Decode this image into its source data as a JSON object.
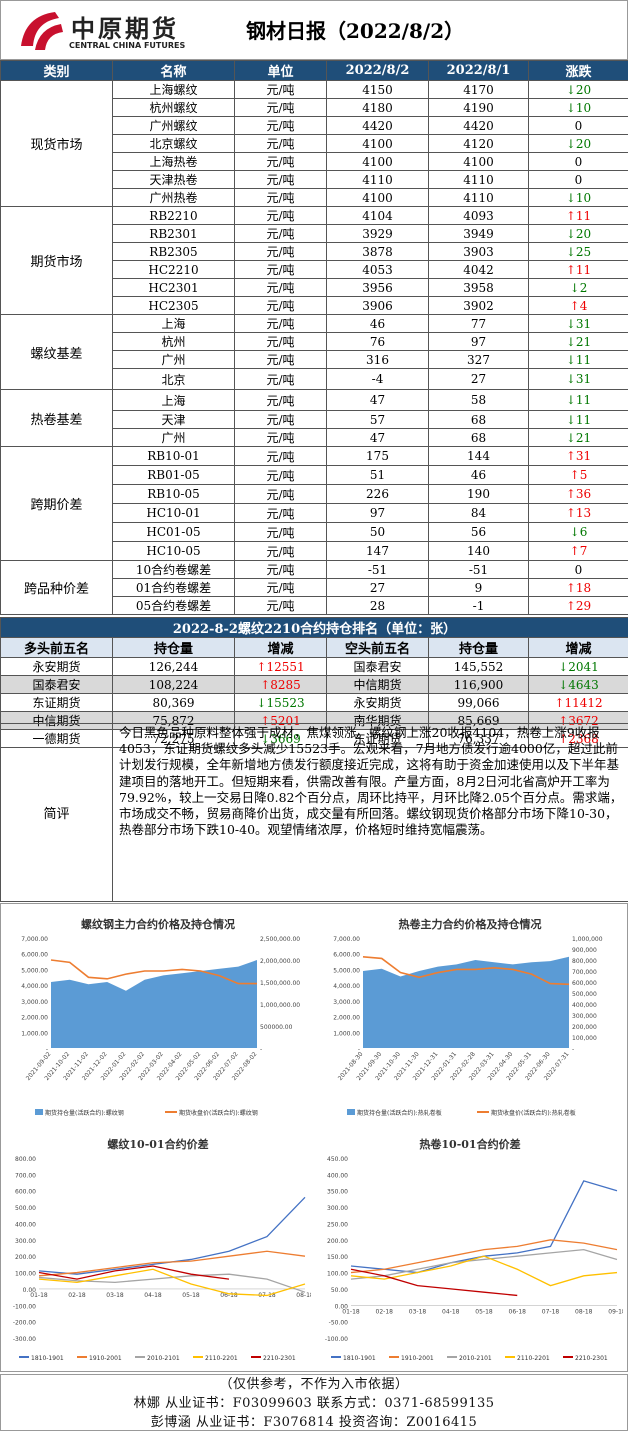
{
  "header": {
    "brand_cn": "中原期货",
    "brand_en": "CENTRAL CHINA FUTURES",
    "title": "钢材日报（2022/8/2）"
  },
  "table_headers": [
    "类别",
    "名称",
    "单位",
    "2022/8/2",
    "2022/8/1",
    "涨跌"
  ],
  "groups": [
    {
      "category": "现货市场",
      "rows": [
        {
          "name": "上海螺纹",
          "unit": "元/吨",
          "v1": "4150",
          "v2": "4170",
          "arrow": "↓",
          "chg": "20",
          "dir": "down"
        },
        {
          "name": "杭州螺纹",
          "unit": "元/吨",
          "v1": "4180",
          "v2": "4190",
          "arrow": "↓",
          "chg": "10",
          "dir": "down"
        },
        {
          "name": "广州螺纹",
          "unit": "元/吨",
          "v1": "4420",
          "v2": "4420",
          "arrow": "",
          "chg": "0",
          "dir": "flat"
        },
        {
          "name": "北京螺纹",
          "unit": "元/吨",
          "v1": "4100",
          "v2": "4120",
          "arrow": "↓",
          "chg": "20",
          "dir": "down"
        },
        {
          "name": "上海热卷",
          "unit": "元/吨",
          "v1": "4100",
          "v2": "4100",
          "arrow": "",
          "chg": "0",
          "dir": "flat"
        },
        {
          "name": "天津热卷",
          "unit": "元/吨",
          "v1": "4110",
          "v2": "4110",
          "arrow": "",
          "chg": "0",
          "dir": "flat"
        },
        {
          "name": "广州热卷",
          "unit": "元/吨",
          "v1": "4100",
          "v2": "4110",
          "arrow": "↓",
          "chg": "10",
          "dir": "down"
        }
      ]
    },
    {
      "category": "期货市场",
      "rows": [
        {
          "name": "RB2210",
          "unit": "元/吨",
          "v1": "4104",
          "v2": "4093",
          "arrow": "↑",
          "chg": "11",
          "dir": "up"
        },
        {
          "name": "RB2301",
          "unit": "元/吨",
          "v1": "3929",
          "v2": "3949",
          "arrow": "↓",
          "chg": "20",
          "dir": "down"
        },
        {
          "name": "RB2305",
          "unit": "元/吨",
          "v1": "3878",
          "v2": "3903",
          "arrow": "↓",
          "chg": "25",
          "dir": "down"
        },
        {
          "name": "HC2210",
          "unit": "元/吨",
          "v1": "4053",
          "v2": "4042",
          "arrow": "↑",
          "chg": "11",
          "dir": "up"
        },
        {
          "name": "HC2301",
          "unit": "元/吨",
          "v1": "3956",
          "v2": "3958",
          "arrow": "↓",
          "chg": "2",
          "dir": "down"
        },
        {
          "name": "HC2305",
          "unit": "元/吨",
          "v1": "3906",
          "v2": "3902",
          "arrow": "↑",
          "chg": "4",
          "dir": "up"
        }
      ]
    },
    {
      "category": "螺纹基差",
      "rows": [
        {
          "name": "上海",
          "unit": "元/吨",
          "v1": "46",
          "v2": "77",
          "arrow": "↓",
          "chg": "31",
          "dir": "down"
        },
        {
          "name": "杭州",
          "unit": "元/吨",
          "v1": "76",
          "v2": "97",
          "arrow": "↓",
          "chg": "21",
          "dir": "down"
        },
        {
          "name": "广州",
          "unit": "元/吨",
          "v1": "316",
          "v2": "327",
          "arrow": "↓",
          "chg": "11",
          "dir": "down"
        },
        {
          "name": "北京",
          "unit": "元/吨",
          "v1": "-4",
          "v2": "27",
          "arrow": "↓",
          "chg": "31",
          "dir": "down"
        }
      ]
    },
    {
      "category": "热卷基差",
      "rows": [
        {
          "name": "上海",
          "unit": "元/吨",
          "v1": "47",
          "v2": "58",
          "arrow": "↓",
          "chg": "11",
          "dir": "down"
        },
        {
          "name": "天津",
          "unit": "元/吨",
          "v1": "57",
          "v2": "68",
          "arrow": "↓",
          "chg": "11",
          "dir": "down"
        },
        {
          "name": "广州",
          "unit": "元/吨",
          "v1": "47",
          "v2": "68",
          "arrow": "↓",
          "chg": "21",
          "dir": "down"
        }
      ]
    },
    {
      "category": "跨期价差",
      "rows": [
        {
          "name": "RB10-01",
          "unit": "元/吨",
          "v1": "175",
          "v2": "144",
          "arrow": "↑",
          "chg": "31",
          "dir": "up"
        },
        {
          "name": "RB01-05",
          "unit": "元/吨",
          "v1": "51",
          "v2": "46",
          "arrow": "↑",
          "chg": "5",
          "dir": "up"
        },
        {
          "name": "RB10-05",
          "unit": "元/吨",
          "v1": "226",
          "v2": "190",
          "arrow": "↑",
          "chg": "36",
          "dir": "up"
        },
        {
          "name": "HC10-01",
          "unit": "元/吨",
          "v1": "97",
          "v2": "84",
          "arrow": "↑",
          "chg": "13",
          "dir": "up"
        },
        {
          "name": "HC01-05",
          "unit": "元/吨",
          "v1": "50",
          "v2": "56",
          "arrow": "↓",
          "chg": "6",
          "dir": "down"
        },
        {
          "name": "HC10-05",
          "unit": "元/吨",
          "v1": "147",
          "v2": "140",
          "arrow": "↑",
          "chg": "7",
          "dir": "up"
        }
      ]
    },
    {
      "category": "跨品种价差",
      "rows": [
        {
          "name": "10合约卷螺差",
          "unit": "元/吨",
          "v1": "-51",
          "v2": "-51",
          "arrow": "",
          "chg": "0",
          "dir": "flat"
        },
        {
          "name": "01合约卷螺差",
          "unit": "元/吨",
          "v1": "27",
          "v2": "9",
          "arrow": "↑",
          "chg": "18",
          "dir": "up"
        },
        {
          "name": "05合约卷螺差",
          "unit": "元/吨",
          "v1": "28",
          "v2": "-1",
          "arrow": "↑",
          "chg": "29",
          "dir": "up"
        }
      ]
    }
  ],
  "ranking": {
    "title": "2022-8-2螺纹2210合约持仓排名（单位：张）",
    "headers": [
      "多头前五名",
      "持仓量",
      "增减",
      "空头前五名",
      "持仓量",
      "增减"
    ],
    "rows": [
      {
        "long_name": "永安期货",
        "long_qty": "126,244",
        "long_arrow": "↑",
        "long_chg": "12551",
        "long_dir": "up",
        "short_name": "国泰君安",
        "short_qty": "145,552",
        "short_arrow": "↓",
        "short_chg": "2041",
        "short_dir": "down"
      },
      {
        "long_name": "国泰君安",
        "long_qty": "108,224",
        "long_arrow": "↑",
        "long_chg": "8285",
        "long_dir": "up",
        "short_name": "中信期货",
        "short_qty": "116,900",
        "short_arrow": "↓",
        "short_chg": "4643",
        "short_dir": "down"
      },
      {
        "long_name": "东证期货",
        "long_qty": "80,369",
        "long_arrow": "↓",
        "long_chg": "15523",
        "long_dir": "down",
        "short_name": "永安期货",
        "short_qty": "99,066",
        "short_arrow": "↑",
        "short_chg": "11412",
        "short_dir": "up"
      },
      {
        "long_name": "中信期货",
        "long_qty": "75,872",
        "long_arrow": "↑",
        "long_chg": "5201",
        "long_dir": "up",
        "short_name": "南华期货",
        "short_qty": "85,669",
        "short_arrow": "↑",
        "short_chg": "3672",
        "short_dir": "up"
      },
      {
        "long_name": "一德期货",
        "long_qty": "72,275",
        "long_arrow": "↓",
        "long_chg": "3669",
        "long_dir": "down",
        "short_name": "东证期货",
        "short_qty": "76,337",
        "short_arrow": "↑",
        "short_chg": "2368",
        "short_dir": "up"
      }
    ]
  },
  "comment": {
    "label": "简评",
    "text": "今日黑色品种原料整体强于成材，焦煤领涨。螺纹钢上涨20收报4104，热卷上涨9收报4053，东证期货螺纹多头减少15523手。宏观来看，7月地方债发行逾4000亿，超过此前计划发行规模，全年新增地方债发行额度接近完成，这将有助于资金加速使用以及下半年基建项目的落地开工。但短期来看，供需改善有限。产量方面，8月2日河北省高炉开工率为79.92%，较上一交易日降0.82个百分点，周环比持平，月环比降2.05个百分点。需求端，市场成交不畅，贸易商降价出货，成交量有所回落。螺纹钢现货价格部分市场下降10-30，热卷部分市场下跌10-40。观望情绪浓厚，价格短时维持宽幅震荡。"
  },
  "chart_data": [
    {
      "type": "area",
      "title": "螺纹钢主力合约价格及持仓情况",
      "x": [
        "2021-09-02",
        "2021-10-02",
        "2021-11-02",
        "2021-12-02",
        "2022-01-02",
        "2022-02-02",
        "2022-03-02",
        "2022-04-02",
        "2022-05-02",
        "2022-06-02",
        "2022-07-02",
        "2022-08-02"
      ],
      "y_left_ticks": [
        "-",
        "1,000.00",
        "2,000.00",
        "3,000.00",
        "4,000.00",
        "5,000.00",
        "6,000.00",
        "7,000.00"
      ],
      "y_right_ticks": [
        "-",
        "500000.00",
        "1,000,000.00",
        "1,500,000.00",
        "2,000,000.00",
        "2,500,000.00"
      ],
      "ylim_left": [
        0,
        7000
      ],
      "ylim_right": [
        0,
        2500000
      ],
      "series": [
        {
          "name": "期货持仓量(活跃合约):螺纹钢",
          "axis": "right",
          "color": "#5b9bd5",
          "values": [
            1500000,
            1550000,
            1450000,
            1500000,
            1300000,
            1550000,
            1650000,
            1700000,
            1750000,
            1800000,
            1850000,
            2000000
          ]
        },
        {
          "name": "期货收盘价(活跃合约):螺纹钢",
          "axis": "left",
          "color": "#ed7d31",
          "values": [
            5600,
            5450,
            4500,
            4400,
            4700,
            4900,
            4900,
            5000,
            4900,
            4600,
            4100,
            4100
          ]
        }
      ]
    },
    {
      "type": "area",
      "title": "热卷主力合约价格及持仓情况",
      "x": [
        "2021-08-30",
        "2021-09-30",
        "2021-10-30",
        "2021-11-30",
        "2021-12-31",
        "2022-01-31",
        "2022-02-28",
        "2022-03-31",
        "2022-04-30",
        "2022-05-31",
        "2022-06-30",
        "2022-07-31"
      ],
      "y_left_ticks": [
        "-",
        "1,000.00",
        "2,000.00",
        "3,000.00",
        "4,000.00",
        "5,000.00",
        "6,000.00",
        "7,000.00"
      ],
      "y_right_ticks": [
        "-",
        "100,000",
        "200,000",
        "300,000",
        "400,000",
        "500,000",
        "600,000",
        "700,000",
        "800,000",
        "900,000",
        "1,000,000"
      ],
      "ylim_left": [
        0,
        7000
      ],
      "ylim_right": [
        0,
        1000000
      ],
      "series": [
        {
          "name": "期货持仓量(活跃合约):热轧卷板",
          "axis": "right",
          "color": "#5b9bd5",
          "values": [
            700000,
            720000,
            650000,
            700000,
            740000,
            760000,
            800000,
            780000,
            760000,
            780000,
            790000,
            830000
          ]
        },
        {
          "name": "期货收盘价(活跃合约):热轧卷板",
          "axis": "left",
          "color": "#ed7d31",
          "values": [
            5800,
            5700,
            4800,
            4500,
            4800,
            5000,
            5000,
            5100,
            5000,
            4700,
            4100,
            4050
          ]
        }
      ]
    },
    {
      "type": "line",
      "title": "螺纹10-01合约价差",
      "x": [
        "01-18",
        "02-18",
        "03-18",
        "04-18",
        "05-18",
        "06-18",
        "07-18",
        "08-18"
      ],
      "y_ticks": [
        "-300.00",
        "-200.00",
        "-100.00",
        "0.00",
        "100.00",
        "200.00",
        "300.00",
        "400.00",
        "500.00",
        "600.00",
        "700.00",
        "800.00"
      ],
      "ylim": [
        -300,
        800
      ],
      "series": [
        {
          "name": "1810-1901",
          "color": "#4472c4",
          "values": [
            110,
            90,
            120,
            150,
            180,
            230,
            320,
            560
          ]
        },
        {
          "name": "1910-2001",
          "color": "#ed7d31",
          "values": [
            80,
            100,
            130,
            160,
            170,
            200,
            230,
            200
          ]
        },
        {
          "name": "2010-2101",
          "color": "#a5a5a5",
          "values": [
            70,
            50,
            40,
            60,
            80,
            90,
            60,
            -20
          ]
        },
        {
          "name": "2110-2201",
          "color": "#ffc000",
          "values": [
            60,
            40,
            80,
            120,
            30,
            -30,
            -40,
            30
          ]
        },
        {
          "name": "2210-2301",
          "color": "#c00000",
          "values": [
            100,
            60,
            110,
            140,
            90,
            60,
            null,
            null
          ]
        }
      ]
    },
    {
      "type": "line",
      "title": "热卷10-01合约价差",
      "x": [
        "01-18",
        "02-18",
        "03-18",
        "04-18",
        "05-18",
        "06-18",
        "07-18",
        "08-18",
        "09-18"
      ],
      "y_ticks": [
        "-100.00",
        "-50.00",
        "0.00",
        "50.00",
        "100.00",
        "150.00",
        "200.00",
        "250.00",
        "300.00",
        "350.00",
        "400.00",
        "450.00"
      ],
      "ylim": [
        -100,
        450
      ],
      "series": [
        {
          "name": "1810-1901",
          "color": "#4472c4",
          "values": [
            120,
            110,
            100,
            130,
            150,
            160,
            180,
            380,
            350
          ]
        },
        {
          "name": "1910-2001",
          "color": "#ed7d31",
          "values": [
            100,
            110,
            130,
            150,
            170,
            180,
            200,
            190,
            170
          ]
        },
        {
          "name": "2010-2101",
          "color": "#a5a5a5",
          "values": [
            80,
            90,
            110,
            130,
            140,
            150,
            160,
            170,
            140
          ]
        },
        {
          "name": "2110-2201",
          "color": "#ffc000",
          "values": [
            90,
            80,
            100,
            120,
            150,
            110,
            60,
            90,
            100
          ]
        },
        {
          "name": "2210-2301",
          "color": "#c00000",
          "values": [
            110,
            90,
            60,
            50,
            40,
            30,
            null,
            null,
            null
          ]
        }
      ]
    }
  ],
  "footer": {
    "line1": "（仅供参考，不作为入市依据）",
    "line2": "林娜 从业证书：F03099603 联系方式：0371-68599135",
    "line3": "彭博涵  从业证书：F3076814 投资咨询：Z0016415"
  }
}
